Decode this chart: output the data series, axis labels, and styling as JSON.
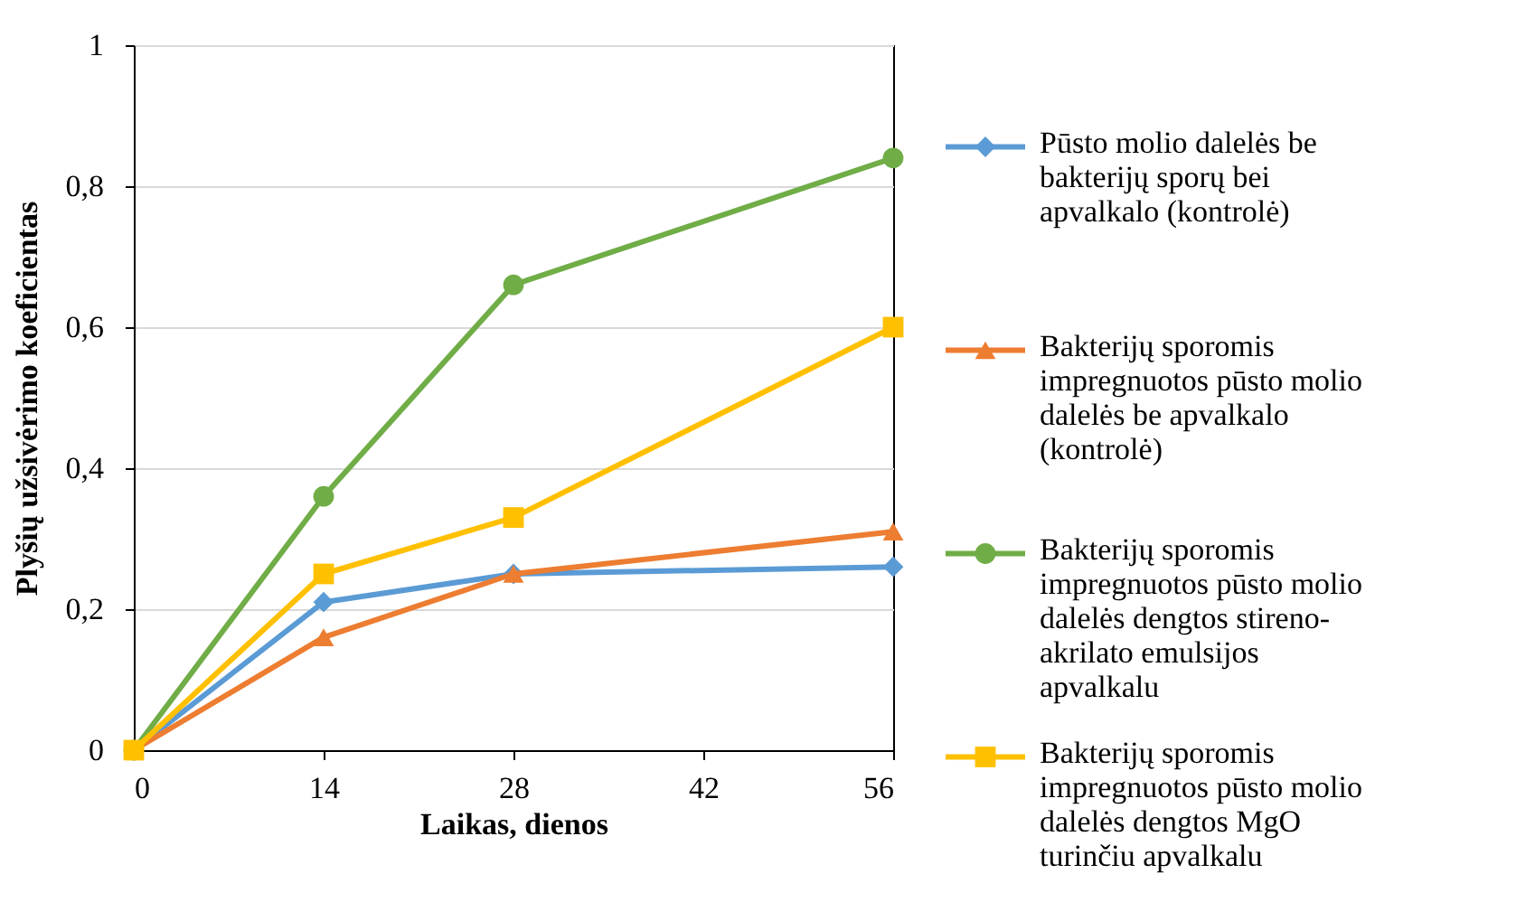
{
  "chart_data": {
    "type": "line",
    "xlabel": "Laikas, dienos",
    "ylabel": "Plyšių užsivėrimo koeficientas",
    "x": [
      0,
      14,
      28,
      56
    ],
    "xlim": [
      0,
      56
    ],
    "xticks": [
      0,
      14,
      28,
      42,
      56
    ],
    "ylim": [
      0,
      1
    ],
    "yticks": [
      0,
      {
        "value": 0.2,
        "label": "0,2"
      },
      {
        "value": 0.4,
        "label": "0,4"
      },
      {
        "value": 0.6,
        "label": "0,6"
      },
      {
        "value": 0.8,
        "label": "0,8"
      },
      1
    ],
    "grid": "y",
    "legend": "right",
    "series": [
      {
        "name": "Pūsto molio dalelės be bakterijų sporų bei apvalkalo (kontrolė)",
        "color": "#5b9bd5",
        "marker": "diamond",
        "values": [
          0,
          0.21,
          0.25,
          0.26
        ]
      },
      {
        "name": "Bakterijų sporomis impregnuotos pūsto molio dalelės be apvalkalo (kontrolė)",
        "color": "#ed7d31",
        "marker": "triangle",
        "values": [
          0,
          0.16,
          0.25,
          0.31
        ]
      },
      {
        "name": "Bakterijų sporomis impregnuotos pūsto molio dalelės dengtos stireno-akrilato emulsijos apvalkalu",
        "color": "#70ad47",
        "marker": "circle",
        "values": [
          0,
          0.36,
          0.66,
          0.84
        ]
      },
      {
        "name": "Bakterijų sporomis impregnuotos pūsto molio dalelės dengtos MgO turinčiu apvalkalu",
        "color": "#ffc000",
        "marker": "square",
        "values": [
          0,
          0.25,
          0.33,
          0.6
        ]
      }
    ]
  }
}
